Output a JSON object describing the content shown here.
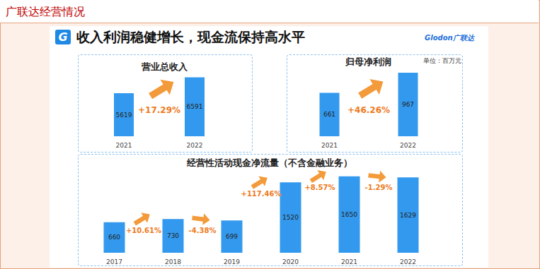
{
  "header": "广联达经营情况",
  "slide": {
    "title": "收入利润稳健增长，现金流保持高水平",
    "logo_mark": "G",
    "logo_text": "Glodon广联达",
    "unit_note": "单位：百万元"
  },
  "chart_data": [
    {
      "type": "bar",
      "title": "营业总收入",
      "categories": [
        "2021",
        "2022"
      ],
      "values": [
        5619,
        6591
      ],
      "color": "#3399ee",
      "ylim": [
        3000,
        7000
      ],
      "yticks": [
        3000,
        7000
      ],
      "grid": false,
      "data_labels": true,
      "tick_labels": "x",
      "annotations": [
        "+17.29%"
      ]
    },
    {
      "type": "bar",
      "title": "归母净利润",
      "categories": [
        "2021",
        "2022"
      ],
      "values": [
        661,
        967
      ],
      "color": "#3399ee",
      "ylim": [
        0,
        1000
      ],
      "yticks": [
        0,
        1000
      ],
      "grid": false,
      "data_labels": true,
      "tick_labels": "x",
      "annotations": [
        "+46.26%"
      ]
    },
    {
      "type": "bar",
      "title": "经营性活动现金净流量（不含金融业务）",
      "categories": [
        "2017",
        "2018",
        "2019",
        "2020",
        "2021",
        "2022"
      ],
      "values": [
        660,
        730,
        699,
        1520,
        1650,
        1629
      ],
      "color": "#3399ee",
      "ylim": [
        0,
        1800
      ],
      "yticks": [
        0,
        1800
      ],
      "grid": false,
      "data_labels": true,
      "tick_labels": "x",
      "annotations": [
        "+10.61%",
        "-4.38%",
        "+117.46%",
        "+8.57%",
        "-1.29%"
      ]
    }
  ]
}
